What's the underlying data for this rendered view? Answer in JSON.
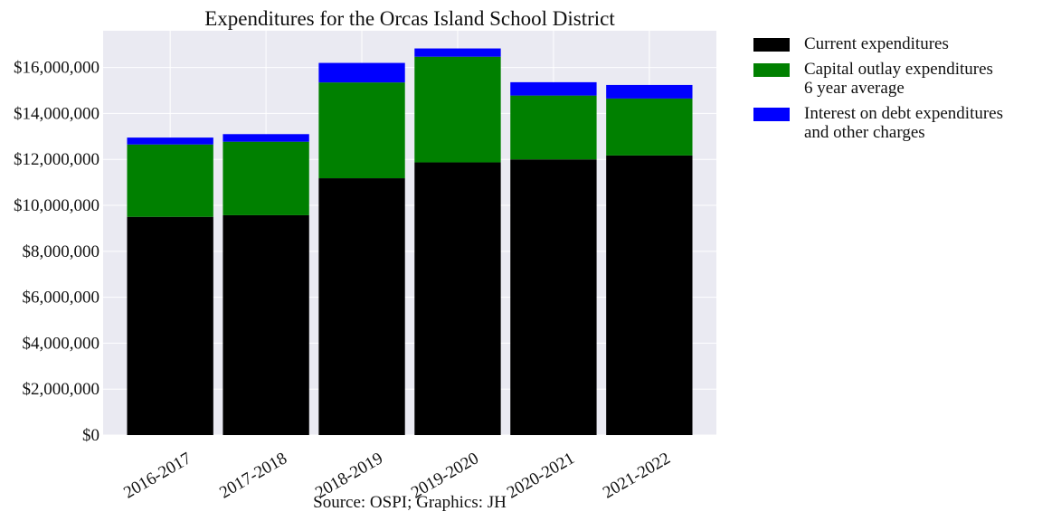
{
  "chart_data": {
    "type": "bar",
    "stacked": true,
    "title": "Expenditures for the Orcas Island School District",
    "caption": "Source: OSPI; Graphics: JH",
    "categories": [
      "2016-2017",
      "2017-2018",
      "2018-2019",
      "2019-2020",
      "2020-2021",
      "2021-2022"
    ],
    "series": [
      {
        "name": "Current expenditures",
        "color": "#000000",
        "values": [
          9500000,
          9570000,
          11180000,
          11870000,
          12000000,
          12170000
        ]
      },
      {
        "name": "Capital outlay expenditures 6 year average",
        "color": "#008000",
        "values": [
          3150000,
          3200000,
          4170000,
          4600000,
          2780000,
          2480000
        ]
      },
      {
        "name": "Interest on debt expenditures and other charges",
        "color": "#0000ff",
        "values": [
          300000,
          330000,
          850000,
          360000,
          580000,
          590000
        ]
      }
    ],
    "legend_lines": [
      [
        "Current expenditures"
      ],
      [
        "Capital outlay expenditures",
        "6 year average"
      ],
      [
        "Interest on debt expenditures",
        "and other charges"
      ]
    ],
    "yticks": [
      "$0",
      "$2,000,000",
      "$4,000,000",
      "$6,000,000",
      "$8,000,000",
      "$10,000,000",
      "$12,000,000",
      "$14,000,000",
      "$16,000,000"
    ],
    "ytick_values": [
      0,
      2000000,
      4000000,
      6000000,
      8000000,
      10000000,
      12000000,
      14000000,
      16000000
    ],
    "ylim": [
      0,
      17600000
    ],
    "grid": true,
    "legend_position": "outside-right"
  }
}
